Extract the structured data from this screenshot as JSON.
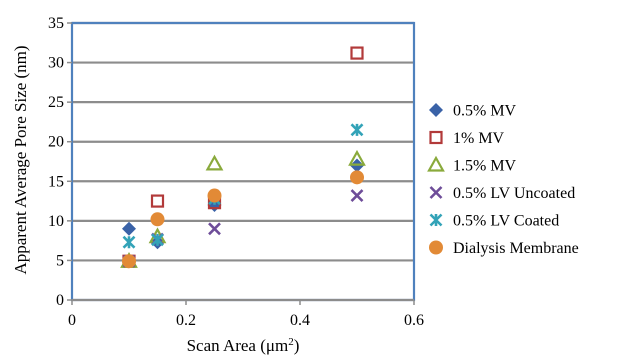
{
  "chart_data": {
    "type": "scatter",
    "xlabel": "Scan Area (μm",
    "xlabel_superscript": "2",
    "xlabel_suffix": ")",
    "ylabel": "Apparent Average Pore Size (nm)",
    "xlim": [
      0,
      0.6
    ],
    "ylim": [
      0,
      35
    ],
    "x_ticks": [
      "0",
      "0.2",
      "0.4",
      "0.6"
    ],
    "x_tick_values": [
      0,
      0.2,
      0.4,
      0.6
    ],
    "y_ticks": [
      "0",
      "5",
      "10",
      "15",
      "20",
      "25",
      "30",
      "35"
    ],
    "y_tick_values": [
      0,
      5,
      10,
      15,
      20,
      25,
      30,
      35
    ],
    "grid": "horizontal",
    "legend_position": "right",
    "colors": {
      "plot_border": "#4f81bd",
      "grid": "#8c8c8c",
      "axis": "#8c8c8c"
    },
    "series": [
      {
        "name": "0.5% MV",
        "marker": "diamond",
        "color": "#3a62a7",
        "points": [
          [
            0.1,
            9.0
          ],
          [
            0.15,
            7.3
          ],
          [
            0.25,
            12.0
          ],
          [
            0.5,
            17.0
          ]
        ]
      },
      {
        "name": "1% MV",
        "marker": "square-open",
        "color": "#b23a3a",
        "points": [
          [
            0.1,
            4.9
          ],
          [
            0.15,
            12.5
          ],
          [
            0.25,
            12.3
          ],
          [
            0.5,
            31.2
          ]
        ]
      },
      {
        "name": "1.5% MV",
        "marker": "triangle-open",
        "color": "#8aaa3c",
        "points": [
          [
            0.1,
            4.9
          ],
          [
            0.15,
            8.0
          ],
          [
            0.25,
            17.2
          ],
          [
            0.5,
            17.8
          ]
        ]
      },
      {
        "name": "0.5% LV Uncoated",
        "marker": "x",
        "color": "#6e4d99",
        "points": [
          [
            0.1,
            4.9
          ],
          [
            0.15,
            7.7
          ],
          [
            0.25,
            9.0
          ],
          [
            0.5,
            13.2
          ]
        ]
      },
      {
        "name": "0.5% LV Coated",
        "marker": "asterisk",
        "color": "#33a3b8",
        "points": [
          [
            0.1,
            7.3
          ],
          [
            0.15,
            7.6
          ],
          [
            0.25,
            12.8
          ],
          [
            0.5,
            21.5
          ]
        ]
      },
      {
        "name": "Dialysis Membrane",
        "marker": "circle",
        "color": "#e28a36",
        "points": [
          [
            0.1,
            4.9
          ],
          [
            0.15,
            10.2
          ],
          [
            0.25,
            13.2
          ],
          [
            0.5,
            15.5
          ]
        ]
      }
    ]
  }
}
